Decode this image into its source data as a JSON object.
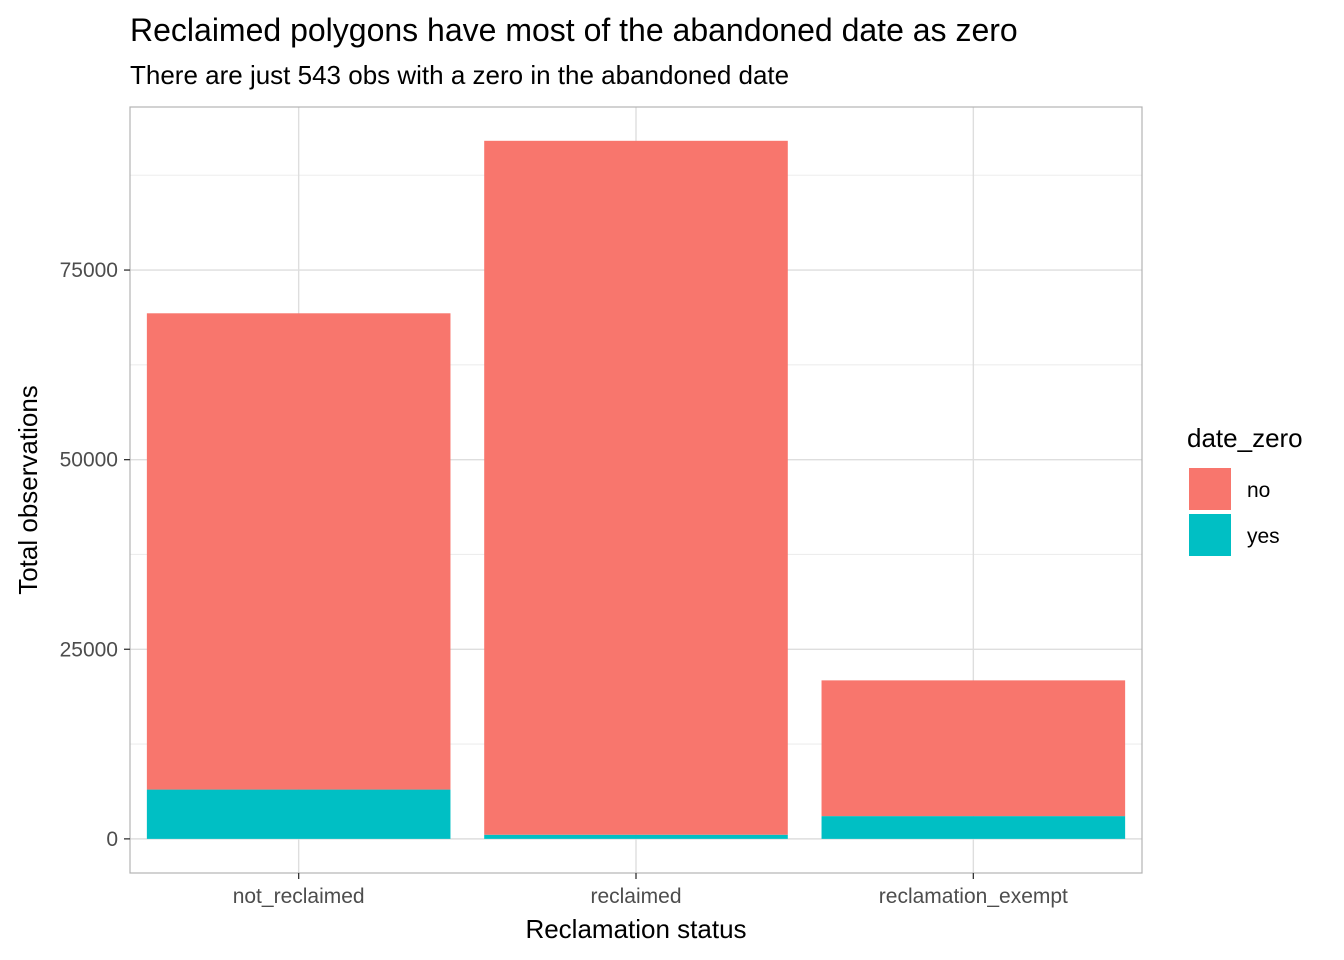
{
  "chart_data": {
    "type": "bar",
    "stacked": true,
    "title": "Reclaimed polygons have most of the abandoned date as zero",
    "subtitle": "There are just 543 obs with a zero in the abandoned date",
    "xlabel": "Reclamation status",
    "ylabel": "Total observations",
    "categories": [
      "not_reclaimed",
      "reclaimed",
      "reclamation_exempt"
    ],
    "series": [
      {
        "name": "no",
        "color": "#F8766D",
        "values": [
          62800,
          91500,
          17900
        ]
      },
      {
        "name": "yes",
        "color": "#00BFC4",
        "values": [
          6500,
          543,
          3000
        ]
      }
    ],
    "ylim": [
      -4500,
      96500
    ],
    "y_ticks": [
      0,
      25000,
      50000,
      75000
    ],
    "y_tick_labels": [
      "0",
      "25000",
      "50000",
      "75000"
    ],
    "y_minor_ticks": [
      12500,
      37500,
      62500,
      87500
    ],
    "grid": true,
    "legend": {
      "title": "date_zero",
      "position": "right",
      "items": [
        "no",
        "yes"
      ]
    }
  }
}
